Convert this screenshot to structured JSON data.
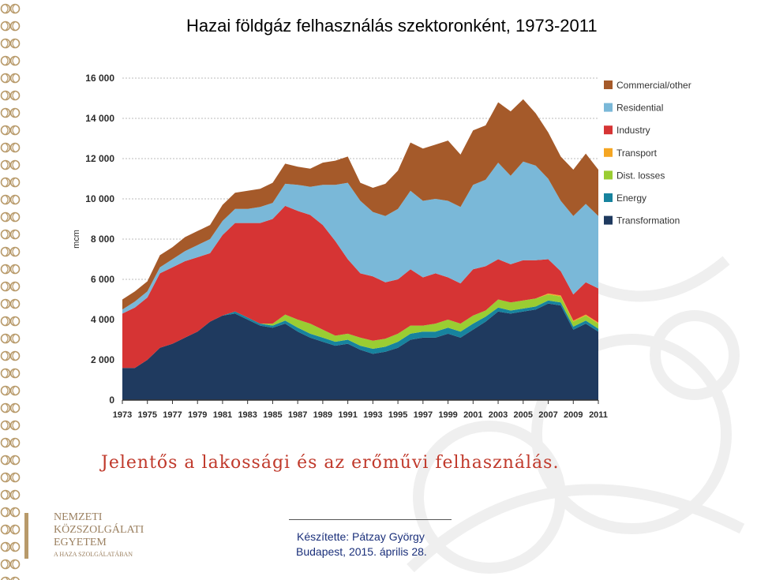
{
  "slide": {
    "title": "Hazai földgáz felhasználás szektoronként, 1973-2011",
    "caption": "Jelentős a lakossági és az erőművi felhasználás.",
    "footer_author": "Készítette: Pátzay György",
    "footer_place_date": "Budapest, 2015. április 28.",
    "logo_lines": [
      "NEMZETI",
      "KÖZSZOLGÁLATI",
      "EGYETEM",
      "A HAZA SZOLGÁLATÁBAN"
    ]
  },
  "colors": {
    "caption": "#c0392b",
    "footer_text": "#1a2f7a",
    "border_ornament": "#b89a6a"
  },
  "chart_data": {
    "type": "area",
    "stacked": true,
    "ylabel": "mcm",
    "ylim": [
      0,
      16000
    ],
    "yticks": [
      0,
      2000,
      4000,
      6000,
      8000,
      10000,
      12000,
      14000,
      16000
    ],
    "ytick_labels": [
      "0",
      "2 000",
      "4 000",
      "6 000",
      "8 000",
      "10 000",
      "12 000",
      "14 000",
      "16 000"
    ],
    "xtick_labels": [
      "1973",
      "1975",
      "1977",
      "1979",
      "1981",
      "1983",
      "1985",
      "1987",
      "1989",
      "1991",
      "1993",
      "1995",
      "1997",
      "1999",
      "2001",
      "2003",
      "2005",
      "2007",
      "2009",
      "2011"
    ],
    "legend_position": "right",
    "grid": "horizontal dotted",
    "x": [
      1973,
      1974,
      1975,
      1976,
      1977,
      1978,
      1979,
      1980,
      1981,
      1982,
      1983,
      1984,
      1985,
      1986,
      1987,
      1988,
      1989,
      1990,
      1991,
      1992,
      1993,
      1994,
      1995,
      1996,
      1997,
      1998,
      1999,
      2000,
      2001,
      2002,
      2003,
      2004,
      2005,
      2006,
      2007,
      2008,
      2009,
      2010,
      2011
    ],
    "series": [
      {
        "name": "Transformation",
        "color": "#1f3a5f",
        "values": [
          1600,
          1600,
          2000,
          2600,
          2800,
          3100,
          3400,
          3900,
          4200,
          4300,
          4000,
          3700,
          3600,
          3800,
          3400,
          3100,
          2900,
          2700,
          2800,
          2500,
          2300,
          2400,
          2600,
          3000,
          3100,
          3100,
          3300,
          3100,
          3500,
          3900,
          4400,
          4300,
          4400,
          4500,
          4800,
          4700,
          3500,
          3800,
          3400
        ]
      },
      {
        "name": "Energy",
        "color": "#17839e",
        "values": [
          0,
          0,
          0,
          0,
          0,
          0,
          0,
          0,
          0,
          100,
          100,
          100,
          100,
          150,
          200,
          200,
          200,
          200,
          200,
          200,
          250,
          250,
          300,
          300,
          300,
          300,
          300,
          300,
          300,
          250,
          200,
          150,
          150,
          150,
          150,
          150,
          150,
          150,
          150
        ]
      },
      {
        "name": "Dist. losses",
        "color": "#9acd32",
        "values": [
          0,
          0,
          0,
          0,
          0,
          0,
          0,
          0,
          0,
          0,
          0,
          0,
          100,
          300,
          400,
          500,
          400,
          300,
          300,
          400,
          400,
          400,
          400,
          400,
          300,
          400,
          400,
          400,
          400,
          300,
          400,
          400,
          400,
          400,
          300,
          300,
          250,
          250,
          250
        ]
      },
      {
        "name": "Transport",
        "color": "#f5a623",
        "values": [
          0,
          0,
          0,
          0,
          0,
          0,
          0,
          0,
          0,
          0,
          0,
          0,
          0,
          0,
          0,
          0,
          0,
          0,
          0,
          0,
          0,
          0,
          0,
          0,
          0,
          0,
          0,
          0,
          0,
          0,
          0,
          0,
          0,
          0,
          50,
          50,
          50,
          50,
          50
        ]
      },
      {
        "name": "Industry",
        "color": "#d63434",
        "values": [
          2700,
          3000,
          3100,
          3700,
          3800,
          3800,
          3700,
          3400,
          4000,
          4400,
          4700,
          5000,
          5200,
          5400,
          5400,
          5400,
          5200,
          4700,
          3700,
          3200,
          3200,
          2800,
          2700,
          2800,
          2400,
          2500,
          2100,
          2000,
          2300,
          2200,
          2000,
          1900,
          2000,
          1900,
          1700,
          1200,
          1300,
          1600,
          1700
        ]
      },
      {
        "name": "Residential",
        "color": "#7ab8d8",
        "values": [
          200,
          300,
          300,
          300,
          400,
          500,
          600,
          700,
          700,
          700,
          700,
          800,
          800,
          1100,
          1300,
          1400,
          2000,
          2800,
          3800,
          3600,
          3200,
          3300,
          3500,
          3900,
          3800,
          3700,
          3800,
          3800,
          4200,
          4300,
          4800,
          4400,
          4900,
          4700,
          4000,
          3500,
          3900,
          3900,
          3600
        ]
      },
      {
        "name": "Commercial/other",
        "color": "#a55a2a",
        "values": [
          500,
          500,
          500,
          600,
          600,
          700,
          700,
          700,
          800,
          800,
          900,
          900,
          1000,
          1000,
          900,
          900,
          1100,
          1200,
          1300,
          900,
          1200,
          1600,
          1900,
          2400,
          2600,
          2700,
          3000,
          2600,
          2700,
          2700,
          3000,
          3200,
          3100,
          2600,
          2300,
          2200,
          2300,
          2500,
          2300
        ]
      }
    ]
  }
}
